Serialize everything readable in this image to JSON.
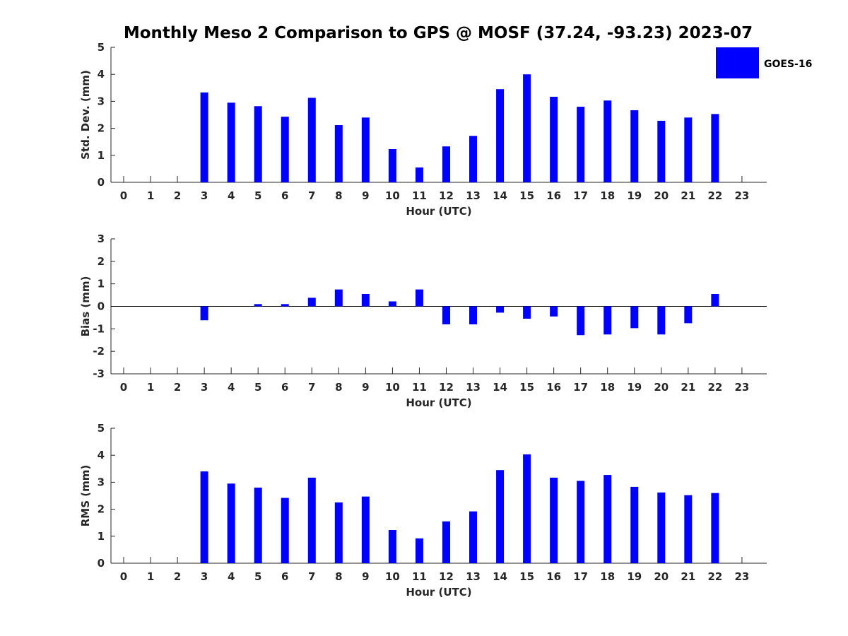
{
  "title": "Monthly Meso 2 Comparison to GPS @ MOSF (37.24, -93.23) 2023-07",
  "legend": {
    "label": "GOES-16",
    "color": "#0000ff"
  },
  "chart_data": [
    {
      "type": "bar",
      "xlabel": "Hour (UTC)",
      "ylabel": "Std. Dev. (mm)",
      "ylim": [
        0,
        5
      ],
      "yticks": [
        "0",
        "1",
        "2",
        "3",
        "4",
        "5"
      ],
      "categories": [
        "0",
        "1",
        "2",
        "3",
        "4",
        "5",
        "6",
        "7",
        "8",
        "9",
        "10",
        "11",
        "12",
        "13",
        "14",
        "15",
        "16",
        "17",
        "18",
        "19",
        "20",
        "21",
        "22",
        "23"
      ],
      "series": [
        {
          "name": "GOES-16",
          "color": "#0000ff",
          "values": [
            null,
            null,
            null,
            3.33,
            2.95,
            2.82,
            2.43,
            3.13,
            2.12,
            2.4,
            1.23,
            0.55,
            1.33,
            1.72,
            3.45,
            4.0,
            3.17,
            2.8,
            3.03,
            2.67,
            2.28,
            2.4,
            2.53,
            null
          ]
        }
      ]
    },
    {
      "type": "bar",
      "xlabel": "Hour (UTC)",
      "ylabel": "Bias (mm)",
      "ylim": [
        -3,
        3
      ],
      "yticks": [
        "-3",
        "-2",
        "-1",
        "0",
        "1",
        "2",
        "3"
      ],
      "zero_line": true,
      "categories": [
        "0",
        "1",
        "2",
        "3",
        "4",
        "5",
        "6",
        "7",
        "8",
        "9",
        "10",
        "11",
        "12",
        "13",
        "14",
        "15",
        "16",
        "17",
        "18",
        "19",
        "20",
        "21",
        "22",
        "23"
      ],
      "series": [
        {
          "name": "GOES-16",
          "color": "#0000ff",
          "values": [
            null,
            null,
            null,
            -0.62,
            0.0,
            0.1,
            0.1,
            0.38,
            0.75,
            0.55,
            0.22,
            0.75,
            -0.8,
            -0.8,
            -0.28,
            -0.55,
            -0.45,
            -1.28,
            -1.25,
            -0.97,
            -1.25,
            -0.75,
            0.55,
            null
          ]
        }
      ]
    },
    {
      "type": "bar",
      "xlabel": "Hour (UTC)",
      "ylabel": "RMS (mm)",
      "ylim": [
        0,
        5
      ],
      "yticks": [
        "0",
        "1",
        "2",
        "3",
        "4",
        "5"
      ],
      "categories": [
        "0",
        "1",
        "2",
        "3",
        "4",
        "5",
        "6",
        "7",
        "8",
        "9",
        "10",
        "11",
        "12",
        "13",
        "14",
        "15",
        "16",
        "17",
        "18",
        "19",
        "20",
        "21",
        "22",
        "23"
      ],
      "series": [
        {
          "name": "GOES-16",
          "color": "#0000ff",
          "values": [
            null,
            null,
            null,
            3.4,
            2.95,
            2.8,
            2.42,
            3.17,
            2.25,
            2.47,
            1.23,
            0.92,
            1.55,
            1.92,
            3.45,
            4.03,
            3.17,
            3.05,
            3.27,
            2.83,
            2.62,
            2.52,
            2.6,
            null
          ]
        }
      ]
    }
  ]
}
